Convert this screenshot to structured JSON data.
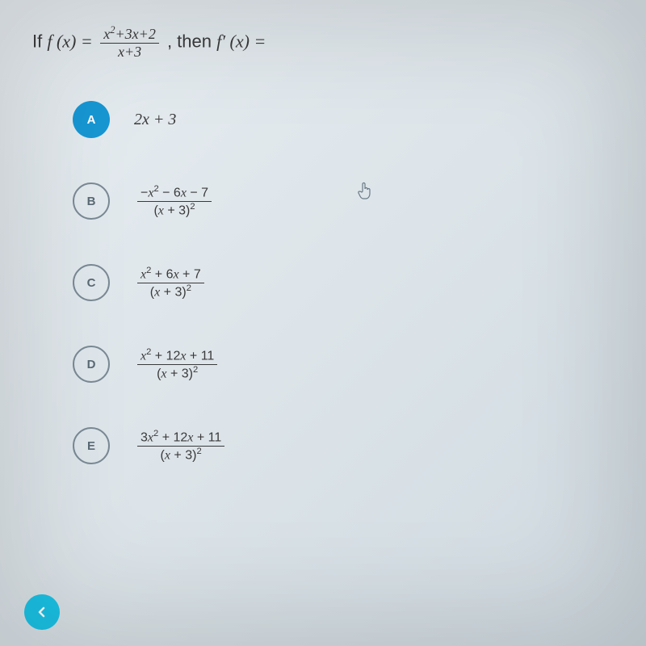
{
  "colors": {
    "selected_bg": "#1797d4",
    "selected_fg": "#ffffff",
    "unselected_border": "#7a8a95",
    "unselected_fg": "#5a6a75",
    "text": "#3a3a3a",
    "back_btn_bg": "#1bc4e8",
    "back_btn_fg": "#ffffff",
    "bg_gradient_start": "#e8eef2",
    "bg_gradient_end": "#d0dae0"
  },
  "question": {
    "prefix": "If ",
    "func": "f (x) = ",
    "frac_num": "x² + 3x + 2",
    "frac_den": "x + 3",
    "suffix": ", then ",
    "deriv": "f′ (x) = "
  },
  "options": [
    {
      "key": "A",
      "selected": true,
      "plain": "2x + 3"
    },
    {
      "key": "B",
      "selected": false,
      "frac_num": "−x² − 6x − 7",
      "frac_den": "(x + 3)²"
    },
    {
      "key": "C",
      "selected": false,
      "frac_num": "x² + 6x + 7",
      "frac_den": "(x + 3)²"
    },
    {
      "key": "D",
      "selected": false,
      "frac_num": "x² + 12x + 11",
      "frac_den": "(x + 3)²"
    },
    {
      "key": "E",
      "selected": false,
      "frac_num": "3x² + 12x + 11",
      "frac_den": "(x + 3)²"
    }
  ],
  "cursor_icon": "pointer-hand",
  "back_icon": "chevron-left"
}
